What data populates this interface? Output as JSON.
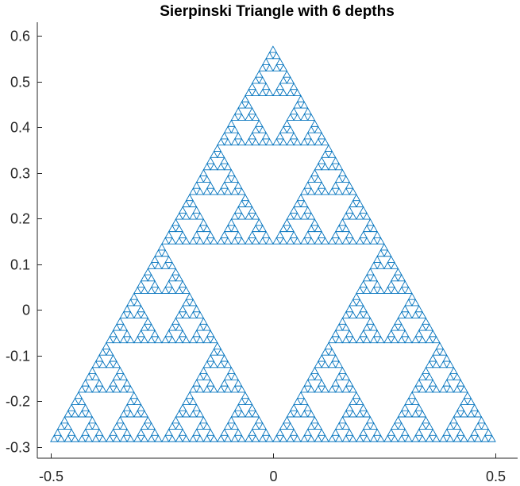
{
  "chart_data": {
    "type": "line",
    "title": "Sierpinski Triangle with 6 depths",
    "xlabel": "",
    "ylabel": "",
    "xlim": [
      -0.53,
      0.55
    ],
    "ylim": [
      -0.325,
      0.63
    ],
    "x_ticks": [
      -0.5,
      0,
      0.5
    ],
    "x_tick_labels": [
      "-0.5",
      "0",
      "0.5"
    ],
    "y_ticks": [
      -0.3,
      -0.2,
      -0.1,
      0,
      0.1,
      0.2,
      0.3,
      0.4,
      0.5,
      0.6
    ],
    "y_tick_labels": [
      "-0.3",
      "-0.2",
      "-0.1",
      "0",
      "0.1",
      "0.2",
      "0.3",
      "0.4",
      "0.5",
      "0.6"
    ],
    "grid": false,
    "box": "off",
    "series": [
      {
        "depth": 6,
        "color": "#0072BD",
        "outer_triangle": {
          "vertices": [
            [
              -0.5,
              -0.2887
            ],
            [
              0.5,
              -0.2887
            ],
            [
              0.0,
              0.5774
            ]
          ]
        }
      }
    ]
  }
}
